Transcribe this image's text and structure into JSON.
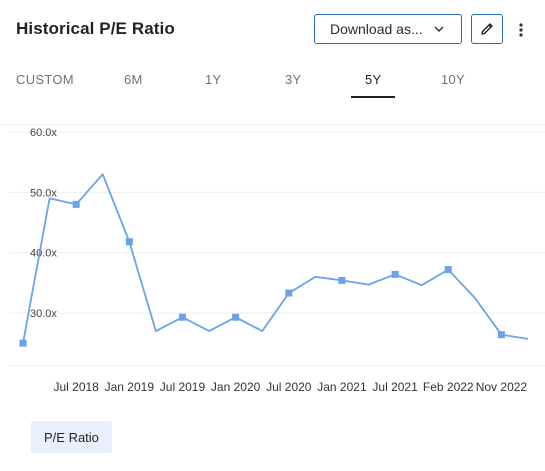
{
  "header": {
    "title": "Historical P/E Ratio",
    "download_label": "Download as..."
  },
  "icons": {
    "download_chevron": "chevron-down-icon",
    "edit": "pencil-icon",
    "more": "more-vertical-icon"
  },
  "tabs": [
    {
      "label": "CUSTOM",
      "active": false
    },
    {
      "label": "6M",
      "active": false
    },
    {
      "label": "1Y",
      "active": false
    },
    {
      "label": "3Y",
      "active": false
    },
    {
      "label": "5Y",
      "active": true
    },
    {
      "label": "10Y",
      "active": false
    }
  ],
  "colors": {
    "series": "#6aa3e8",
    "grid": "#eceef1",
    "accent_border": "#2b6cb0",
    "legend_bg": "#e8f1fb"
  },
  "chart_data": {
    "type": "line",
    "y_tick_labels": [
      "60.0x",
      "50.0x",
      "40.0x",
      "30.0x"
    ],
    "y_ticks": [
      60,
      50,
      40,
      30
    ],
    "ylim": [
      22,
      62
    ],
    "x_tick_labels": [
      "Jul 2018",
      "Jan 2019",
      "Jul 2019",
      "Jan 2020",
      "Jul 2020",
      "Jan 2021",
      "Jul 2021",
      "Feb 2022",
      "Nov 2022"
    ],
    "grid": true,
    "legend": "bottom-left",
    "series": [
      {
        "name": "P/E Ratio",
        "values": [
          25.0,
          49.0,
          48.0,
          53.0,
          41.8,
          27.0,
          29.3,
          27.0,
          29.3,
          27.0,
          33.3,
          36.0,
          35.4,
          34.7,
          36.4,
          34.6,
          37.2,
          32.5,
          26.4,
          25.7
        ],
        "markers": [
          true,
          false,
          true,
          false,
          true,
          false,
          true,
          false,
          true,
          false,
          true,
          false,
          true,
          false,
          true,
          false,
          true,
          false,
          true,
          false
        ]
      }
    ]
  }
}
